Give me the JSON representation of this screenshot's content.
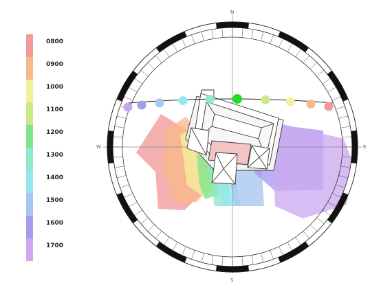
{
  "legend": {
    "items": [
      {
        "label": "0800",
        "color": "#f29a9a"
      },
      {
        "label": "0900",
        "color": "#f7b98a"
      },
      {
        "label": "1000",
        "color": "#f4ef9a"
      },
      {
        "label": "1100",
        "color": "#cde889"
      },
      {
        "label": "1200",
        "color": "#7fe48c"
      },
      {
        "label": "1300",
        "color": "#8de9c8"
      },
      {
        "label": "1400",
        "color": "#97e6ee"
      },
      {
        "label": "1500",
        "color": "#a6c7ef"
      },
      {
        "label": "1600",
        "color": "#a79bee"
      },
      {
        "label": "1700",
        "color": "#cda9f1"
      }
    ]
  },
  "sun_path": {
    "points": [
      {
        "color": "#c9a6f0"
      },
      {
        "color": "#a79bee"
      },
      {
        "color": "#a6c7ef"
      },
      {
        "color": "#97e6ee"
      },
      {
        "color": "#8de9c8"
      },
      {
        "color": "#22dd22"
      },
      {
        "color": "#cde889"
      },
      {
        "color": "#f4ef9a"
      },
      {
        "color": "#f7b98a"
      },
      {
        "color": "#f29a9a"
      }
    ]
  },
  "compass": {
    "north": "N",
    "south": "S",
    "east": "E",
    "west": "W"
  }
}
